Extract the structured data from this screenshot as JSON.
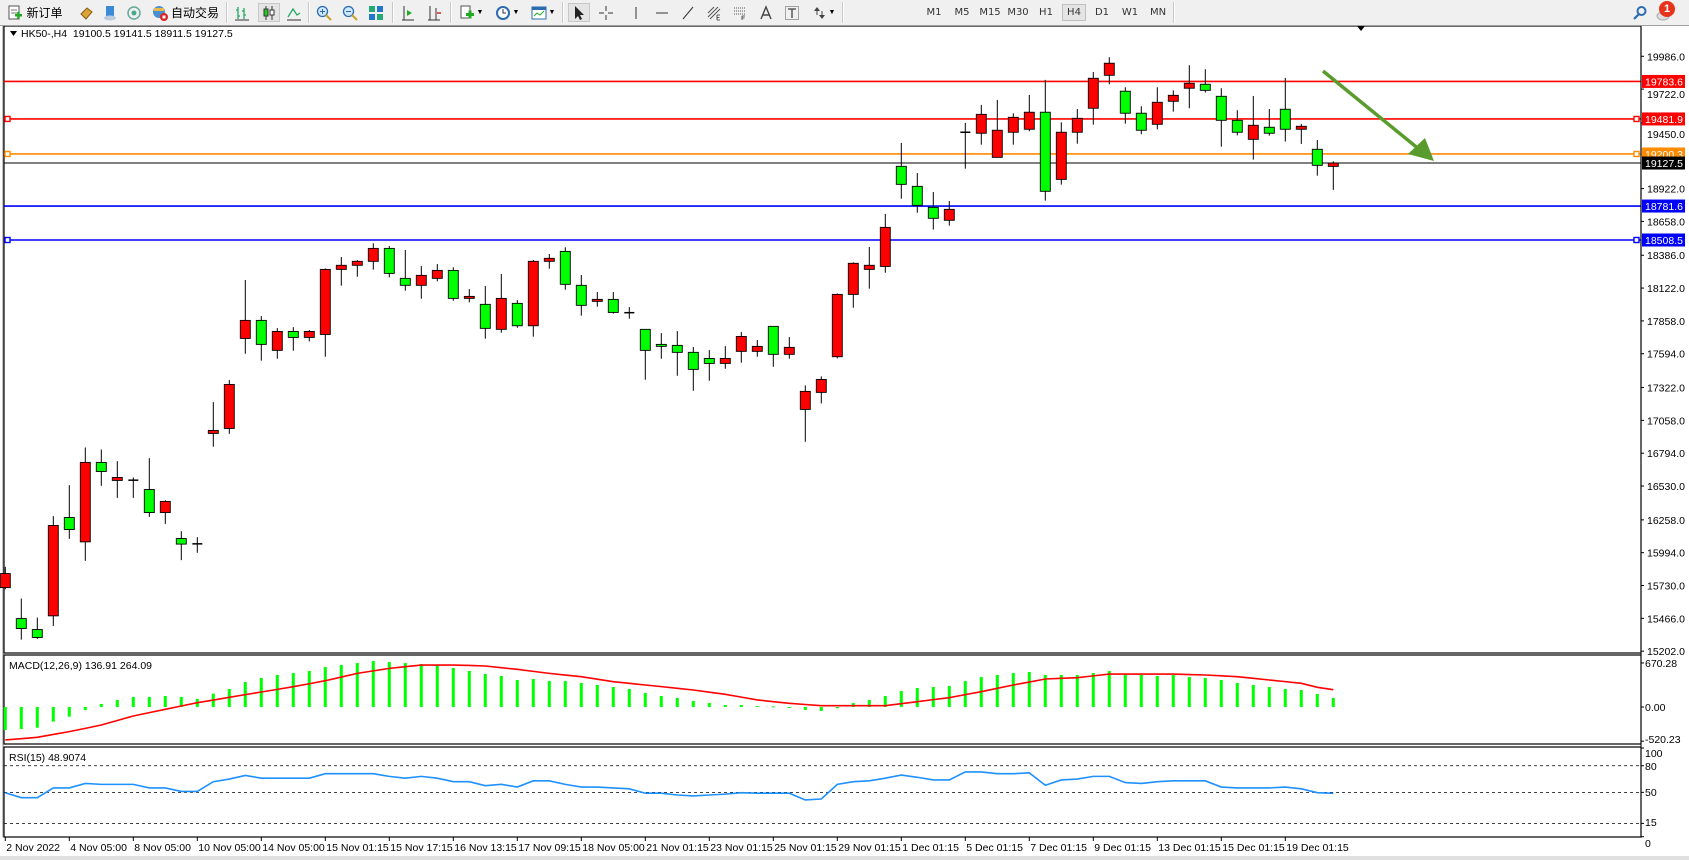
{
  "toolbar": {
    "new_order_label": "新订单",
    "auto_trading_label": "自动交易",
    "timeframes": [
      "M1",
      "M5",
      "M15",
      "M30",
      "H1",
      "H4",
      "D1",
      "W1",
      "MN"
    ],
    "selected_timeframe": "H4",
    "notification_count": "1",
    "icons": [
      "new-order-icon",
      "market-watch-icon",
      "data-window-icon",
      "signals-icon",
      "auto-trading-icon",
      "bar-chart-icon",
      "candlestick-icon",
      "line-chart-icon",
      "zoom-in-icon",
      "zoom-out-icon",
      "tile-windows-icon",
      "chart-shift-icon",
      "autoscroll-icon",
      "indicators-icon",
      "periods-icon",
      "templates-icon",
      "cursor-icon",
      "crosshair-icon",
      "vertical-line-icon",
      "horizontal-line-icon",
      "trendline-icon",
      "fibonacci-icon",
      "fibo-fan-icon",
      "text-icon",
      "text-label-icon",
      "arrows-icon",
      "search-icon",
      "notification-icon"
    ]
  },
  "chart": {
    "header": "HK50-,H4  19100.5 19141.5 18911.5 19127.5",
    "macd_label": "MACD(12,26,9) 136.91 264.09",
    "rsi_label": "RSI(15) 48.9074",
    "colors": {
      "bull": "#ff0000",
      "bear": "#00ff00",
      "histogram": "#00ff00",
      "signal": "#ff0000",
      "rsi": "#1e90ff",
      "arrow": "#5a9b2e"
    }
  },
  "chart_data": {
    "type": "candlestick",
    "price_ticks": [
      "19986.0",
      "19722.0",
      "19450.0",
      "18922.0",
      "18658.0",
      "18386.0",
      "18122.0",
      "17858.0",
      "17594.0",
      "17322.0",
      "17058.0",
      "16794.0",
      "16530.0",
      "16258.0",
      "15994.0",
      "15730.0",
      "15466.0",
      "15202.0"
    ],
    "price_range": [
      15202,
      19986
    ],
    "current_price": "19127.5",
    "levels": [
      {
        "price": "19783.6",
        "color": "#ff0000"
      },
      {
        "price": "19481.9",
        "color": "#ff0000"
      },
      {
        "price": "19200.3",
        "color": "#ff8c00"
      },
      {
        "price": "18781.6",
        "color": "#0000ff"
      },
      {
        "price": "18508.5",
        "color": "#0000ff"
      }
    ],
    "time_labels": [
      "2 Nov 2022",
      "4 Nov 05:00",
      "8 Nov 05:00",
      "10 Nov 05:00",
      "14 Nov 05:00",
      "15 Nov 01:15",
      "15 Nov 17:15",
      "16 Nov 13:15",
      "17 Nov 09:15",
      "18 Nov 05:00",
      "21 Nov 01:15",
      "23 Nov 01:15",
      "25 Nov 01:15",
      "29 Nov 01:15",
      "1 Dec 01:15",
      "5 Dec 01:15",
      "7 Dec 01:15",
      "9 Dec 01:15",
      "13 Dec 01:15",
      "15 Dec 01:15",
      "19 Dec 01:15"
    ],
    "ohlc": [
      [
        15713,
        15880,
        15700,
        15826
      ],
      [
        15464,
        15625,
        15295,
        15384
      ],
      [
        15376,
        15472,
        15301,
        15312
      ],
      [
        15486,
        16288,
        15405,
        16213
      ],
      [
        16277,
        16537,
        16105,
        16180
      ],
      [
        16081,
        16840,
        15928,
        16720
      ],
      [
        16720,
        16824,
        16532,
        16647
      ],
      [
        16575,
        16730,
        16435,
        16599
      ],
      [
        16577,
        16599,
        16435,
        16577
      ],
      [
        16502,
        16754,
        16282,
        16317
      ],
      [
        16317,
        16416,
        16226,
        16406
      ],
      [
        16108,
        16167,
        15934,
        16063
      ],
      [
        16065,
        16119,
        15993,
        16065
      ],
      [
        16953,
        17205,
        16846,
        16977
      ],
      [
        16993,
        17382,
        16950,
        17347
      ],
      [
        17717,
        18187,
        17594,
        17862
      ],
      [
        17862,
        17897,
        17538,
        17669
      ],
      [
        17621,
        17800,
        17554,
        17773
      ],
      [
        17773,
        17808,
        17618,
        17725
      ],
      [
        17725,
        17784,
        17693,
        17773
      ],
      [
        17749,
        18280,
        17570,
        18272
      ],
      [
        18272,
        18372,
        18141,
        18305
      ],
      [
        18305,
        18347,
        18213,
        18337
      ],
      [
        18337,
        18482,
        18270,
        18441
      ],
      [
        18441,
        18460,
        18208,
        18240
      ],
      [
        18200,
        18428,
        18101,
        18144
      ],
      [
        18144,
        18299,
        18036,
        18224
      ],
      [
        18200,
        18315,
        18176,
        18264
      ],
      [
        18264,
        18289,
        18020,
        18039
      ],
      [
        18039,
        18114,
        18007,
        18055
      ],
      [
        17991,
        18138,
        17715,
        17798
      ],
      [
        17790,
        18235,
        17763,
        18039
      ],
      [
        17999,
        18026,
        17803,
        17819
      ],
      [
        17819,
        18348,
        17731,
        18337
      ],
      [
        18337,
        18396,
        18278,
        18361
      ],
      [
        18417,
        18450,
        18109,
        18152
      ],
      [
        18144,
        18227,
        17900,
        17983
      ],
      [
        18015,
        18090,
        17972,
        18031
      ],
      [
        18031,
        18090,
        17916,
        17926
      ],
      [
        17924,
        17969,
        17875,
        17924
      ],
      [
        17790,
        17790,
        17385,
        17621
      ],
      [
        17669,
        17760,
        17554,
        17653
      ],
      [
        17661,
        17776,
        17417,
        17605
      ],
      [
        17605,
        17648,
        17296,
        17468
      ],
      [
        17556,
        17623,
        17377,
        17516
      ],
      [
        17516,
        17655,
        17473,
        17556
      ],
      [
        17613,
        17768,
        17522,
        17733
      ],
      [
        17613,
        17704,
        17570,
        17653
      ],
      [
        17814,
        17814,
        17489,
        17589
      ],
      [
        17589,
        17728,
        17554,
        17645
      ],
      [
        17146,
        17339,
        16886,
        17291
      ],
      [
        17283,
        17412,
        17194,
        17387
      ],
      [
        17570,
        18079,
        17556,
        18071
      ],
      [
        18071,
        18329,
        17964,
        18321
      ],
      [
        18272,
        18452,
        18117,
        18305
      ],
      [
        18296,
        18718,
        18245,
        18610
      ],
      [
        19101,
        19289,
        18841,
        18956
      ],
      [
        18940,
        19047,
        18728,
        18787
      ],
      [
        18771,
        18894,
        18592,
        18683
      ],
      [
        18667,
        18822,
        18624,
        18755
      ],
      [
        19375,
        19450,
        19082,
        19375
      ],
      [
        19367,
        19595,
        19275,
        19519
      ],
      [
        19173,
        19635,
        19173,
        19391
      ],
      [
        19375,
        19527,
        19275,
        19495
      ],
      [
        19399,
        19675,
        19383,
        19536
      ],
      [
        19536,
        19796,
        18825,
        18900
      ],
      [
        18996,
        19455,
        18954,
        19375
      ],
      [
        19375,
        19562,
        19283,
        19487
      ],
      [
        19568,
        19860,
        19436,
        19809
      ],
      [
        19833,
        19978,
        19761,
        19930
      ],
      [
        19705,
        19737,
        19444,
        19528
      ],
      [
        19528,
        19584,
        19359,
        19391
      ],
      [
        19439,
        19737,
        19399,
        19616
      ],
      [
        19624,
        19712,
        19541,
        19672
      ],
      [
        19729,
        19914,
        19568,
        19769
      ],
      [
        19761,
        19882,
        19694,
        19712
      ],
      [
        19664,
        19729,
        19259,
        19471
      ],
      [
        19471,
        19552,
        19350,
        19375
      ],
      [
        19318,
        19667,
        19155,
        19431
      ],
      [
        19415,
        19562,
        19348,
        19367
      ],
      [
        19560,
        19812,
        19300,
        19399
      ],
      [
        19399,
        19442,
        19281,
        19423
      ],
      [
        19238,
        19313,
        19026,
        19109
      ],
      [
        19100.5,
        19141.5,
        18911.5,
        19127.5
      ]
    ],
    "macd": {
      "ticks": [
        "670.28",
        "0.00",
        "-520.23"
      ],
      "histogram": [
        -350,
        -335,
        -315,
        -223,
        -147,
        -46,
        46,
        106,
        152,
        152,
        167,
        152,
        122,
        203,
        274,
        380,
        441,
        487,
        517,
        548,
        608,
        639,
        669,
        700,
        684,
        669,
        654,
        639,
        593,
        548,
        502,
        472,
        411,
        426,
        395,
        395,
        365,
        335,
        304,
        274,
        213,
        167,
        137,
        91,
        61,
        30,
        30,
        15,
        10,
        -15,
        -45,
        -60,
        -20,
        60,
        106,
        167,
        243,
        289,
        304,
        319,
        395,
        456,
        487,
        517,
        532,
        487,
        487,
        487,
        517,
        548,
        502,
        487,
        472,
        487,
        456,
        441,
        411,
        365,
        335,
        304,
        274,
        258,
        198,
        136.91
      ],
      "signal": [
        -502,
        -482,
        -461,
        -418,
        -375,
        -325,
        -274,
        -205,
        -137,
        -86,
        -35,
        15,
        66,
        106,
        147,
        188,
        228,
        268,
        309,
        354,
        400,
        456,
        512,
        550,
        588,
        614,
        639,
        639,
        639,
        632,
        624,
        598,
        573,
        542,
        512,
        486,
        461,
        423,
        385,
        360,
        335,
        310,
        284,
        259,
        226,
        193,
        150,
        107,
        81,
        56,
        38,
        20,
        20,
        20,
        20,
        20,
        50,
        81,
        112,
        142,
        188,
        233,
        284,
        335,
        380,
        426,
        436,
        446,
        474,
        502,
        502,
        502,
        502,
        502,
        494,
        487,
        474,
        461,
        436,
        411,
        386,
        360,
        300,
        264.09
      ]
    },
    "rsi": {
      "ticks": [
        "100",
        "80",
        "50",
        "15",
        "0"
      ],
      "levels": [
        80,
        50,
        15
      ],
      "values": [
        49.6,
        44,
        44,
        55,
        55,
        60,
        59,
        59,
        59,
        55,
        55,
        51,
        51,
        62,
        65,
        69,
        66,
        66,
        66,
        66,
        71,
        71,
        71,
        71,
        68,
        66,
        68,
        66,
        62,
        62,
        57.5,
        59,
        56,
        63,
        63,
        59,
        56,
        56,
        55,
        54,
        49,
        49,
        47,
        46,
        47,
        48,
        49.6,
        49,
        49,
        49,
        41.4,
        42.5,
        59,
        62,
        63,
        66,
        69.5,
        67,
        64,
        64,
        73,
        73,
        71,
        71,
        72,
        58,
        64,
        65,
        68,
        68,
        61,
        60,
        62,
        63,
        63,
        63,
        56,
        55,
        55,
        55,
        56,
        54,
        49.6,
        48.9074
      ]
    }
  }
}
